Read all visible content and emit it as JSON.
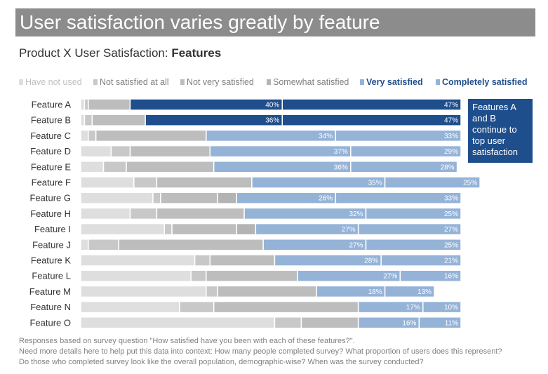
{
  "banner_title": "User satisfaction varies greatly by feature",
  "subtitle_prefix": "Product X User Satisfaction: ",
  "subtitle_bold": "Features",
  "callout": "Features A and B continue to top user satisfaction",
  "footnotes": [
    "Responses based on survey question \"How satisfied have you been with each of these features?\".",
    "Need more details here to help put this data into context: How many people completed survey? What proportion of users does this represent?",
    "Do those who completed survey look like the overall population, demographic-wise? When was the survey conducted?"
  ],
  "colors": {
    "have_not_used": "#dedede",
    "not_satisfied_at_all": "#c8c8c8",
    "not_very_satisfied": "#bdbdbd",
    "somewhat_satisfied": "#b3b3b3",
    "very_satisfied_dark": "#1f4e8c",
    "very_satisfied_light": "#95b3d7",
    "completely_satisfied_dark": "#1f4e8c",
    "completely_satisfied_light": "#95b3d7",
    "legend_very": "#1f4e8c",
    "legend_completely": "#1f4e8c"
  },
  "chart_data": {
    "type": "bar",
    "orientation": "horizontal",
    "stacked": true,
    "title": "Product X User Satisfaction: Features",
    "categories": [
      "Feature A",
      "Feature B",
      "Feature C",
      "Feature D",
      "Feature E",
      "Feature F",
      "Feature G",
      "Feature H",
      "Feature I",
      "Feature J",
      "Feature K",
      "Feature L",
      "Feature M",
      "Feature N",
      "Feature O"
    ],
    "series": [
      {
        "name": "Have not used",
        "values": [
          1,
          1,
          2,
          8,
          6,
          14,
          19,
          13,
          22,
          2,
          30,
          29,
          33,
          26,
          51
        ]
      },
      {
        "name": "Not satisfied at all",
        "values": [
          1,
          2,
          2,
          5,
          6,
          6,
          2,
          7,
          2,
          8,
          4,
          4,
          3,
          9,
          7
        ]
      },
      {
        "name": "Not very satisfied",
        "values": [
          11,
          14,
          29,
          21,
          23,
          25,
          15,
          23,
          17,
          38,
          17,
          24,
          26,
          38,
          15
        ]
      },
      {
        "name": "Somewhat satisfied",
        "values": [
          0,
          0,
          0,
          0,
          0,
          0,
          5,
          0,
          5,
          0,
          0,
          0,
          0,
          0,
          0
        ]
      },
      {
        "name": "Very satisfied",
        "values": [
          40,
          36,
          34,
          37,
          36,
          35,
          26,
          32,
          27,
          27,
          28,
          27,
          18,
          17,
          16
        ]
      },
      {
        "name": "Completely satisfied",
        "values": [
          47,
          47,
          33,
          29,
          28,
          25,
          33,
          25,
          27,
          25,
          21,
          16,
          13,
          10,
          11
        ]
      }
    ],
    "highlight_categories": [
      "Feature A",
      "Feature B"
    ],
    "xlim": [
      0,
      100
    ],
    "value_format": "percent",
    "legend_position": "top"
  }
}
